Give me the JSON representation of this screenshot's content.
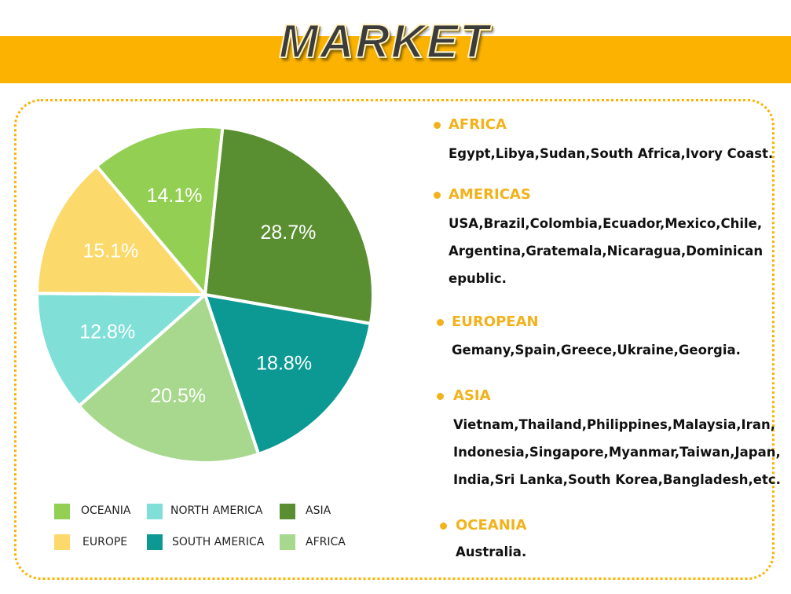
{
  "header": {
    "title": "MARKET"
  },
  "chart_data": {
    "type": "pie",
    "slices": [
      {
        "label": "ASIA",
        "value": 28.7,
        "text": "28.7%",
        "color": "#5a8f31"
      },
      {
        "label": "SOUTH AMERICA",
        "value": 18.8,
        "text": "18.8%",
        "color": "#0d9993"
      },
      {
        "label": "AFRICA",
        "value": 20.5,
        "text": "20.5%",
        "color": "#a8d88e"
      },
      {
        "label": "NORTH AMERICA",
        "value": 12.8,
        "text": "12.8%",
        "color": "#80e0d8"
      },
      {
        "label": "EUROPE",
        "value": 15.1,
        "text": "15.1%",
        "color": "#fcd96b"
      },
      {
        "label": "OCEANIA",
        "value": 14.1,
        "text": "14.1%",
        "color": "#92cf52"
      }
    ],
    "legend": [
      {
        "label": "OCEANIA",
        "color": "#92cf52"
      },
      {
        "label": "NORTH AMERICA",
        "color": "#80e0d8"
      },
      {
        "label": "ASIA",
        "color": "#5a8f31"
      },
      {
        "label": "EUROPE",
        "color": "#fcd96b"
      },
      {
        "label": "SOUTH AMERICA",
        "color": "#0d9993"
      },
      {
        "label": "AFRICA",
        "color": "#a8d88e"
      }
    ],
    "legend_position": "bottom"
  },
  "regions": [
    {
      "name": "AFRICA",
      "lines": [
        "Egypt,Libya,Sudan,South Africa,Ivory Coast."
      ]
    },
    {
      "name": "AMERICAS",
      "lines": [
        "USA,Brazil,Colombia,Ecuador,Mexico,Chile,",
        "Argentina,Gratemala,Nicaragua,Dominican",
        "epublic."
      ]
    },
    {
      "name": "EUROPEAN",
      "lines": [
        "Gemany,Spain,Greece,Ukraine,Georgia."
      ]
    },
    {
      "name": "ASIA",
      "lines": [
        "Vietnam,Thailand,Philippines,Malaysia,Iran,",
        "Indonesia,Singapore,Myanmar,Taiwan,Japan,",
        "India,Sri Lanka,South Korea,Bangladesh,etc."
      ]
    },
    {
      "name": "OCEANIA",
      "lines": [
        "Australia."
      ]
    }
  ]
}
